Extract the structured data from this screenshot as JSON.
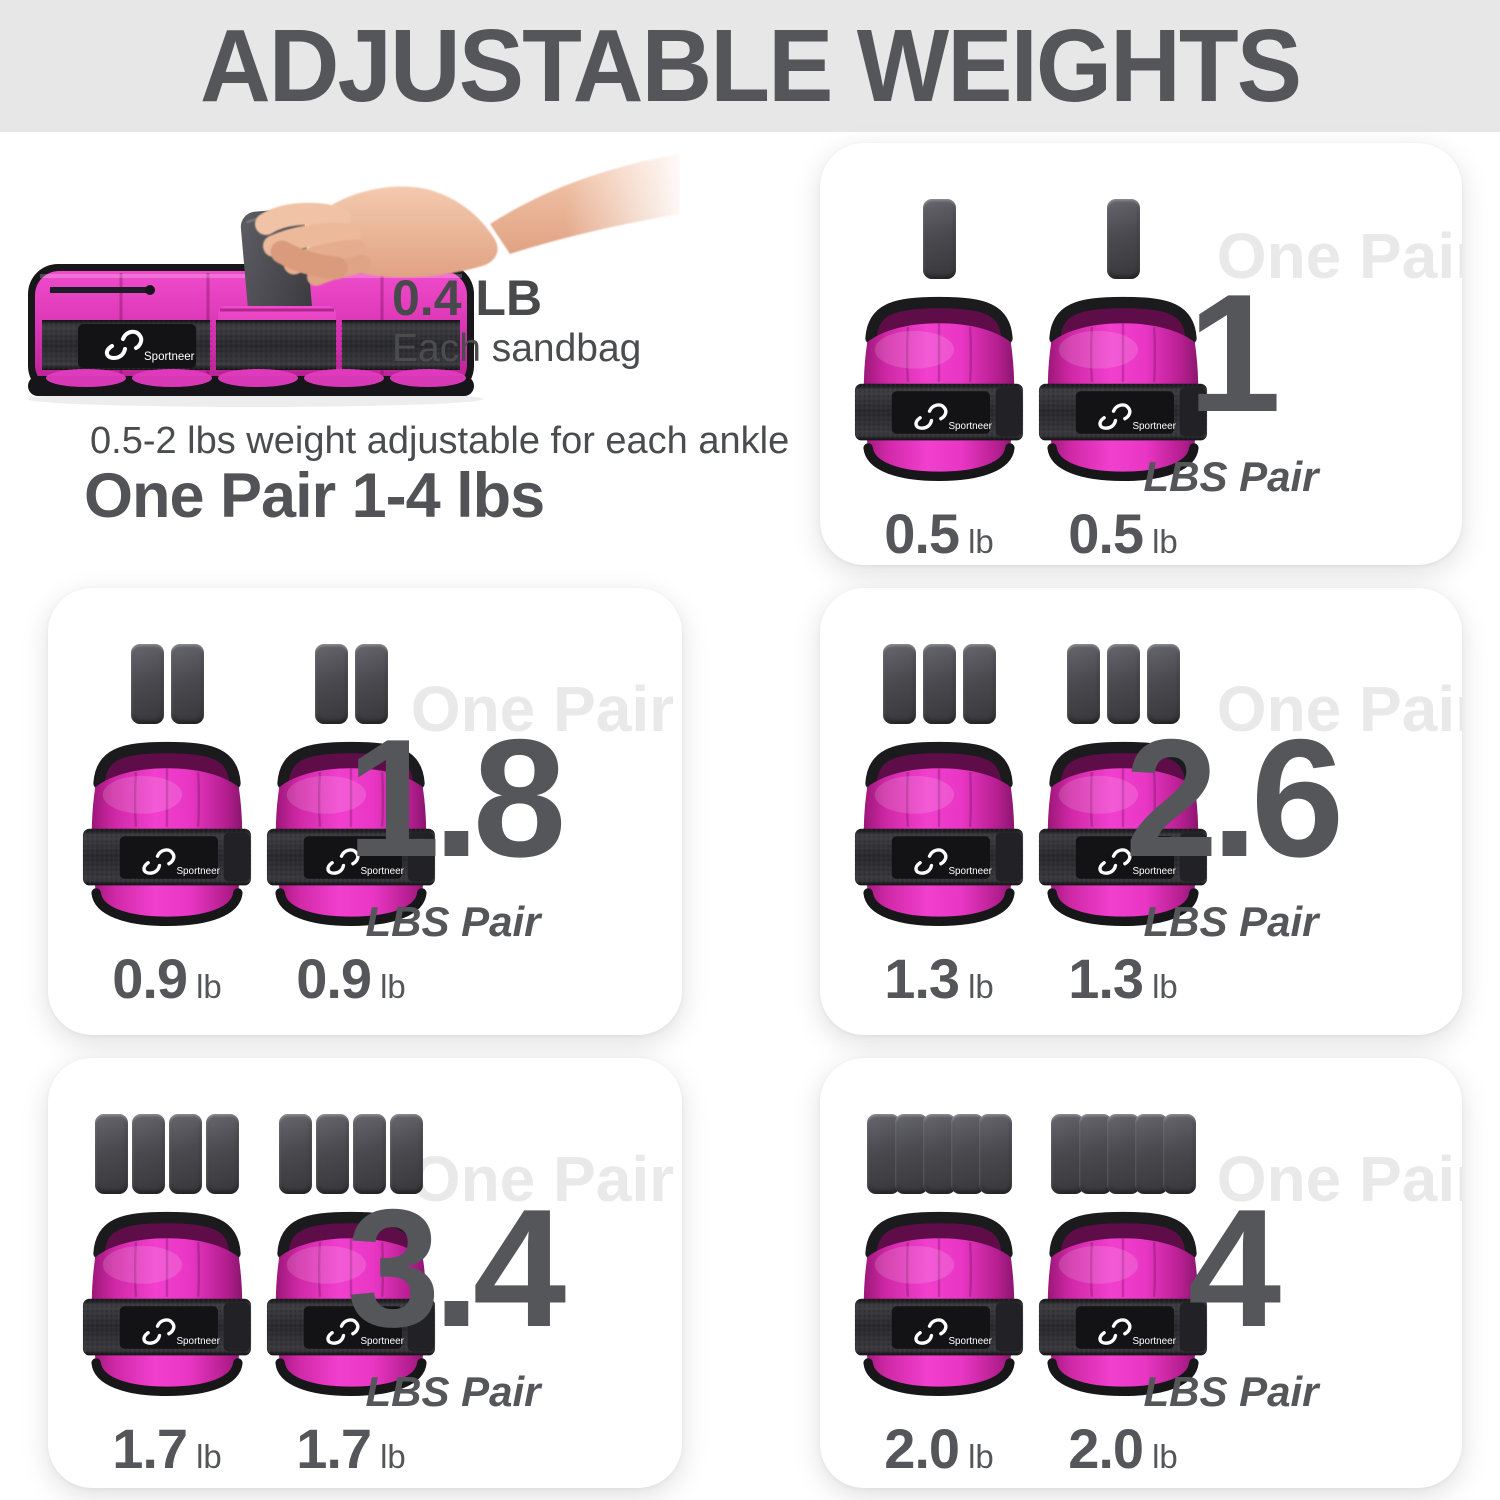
{
  "header": {
    "title": "ADJUSTABLE WEIGHTS"
  },
  "intro": {
    "sandbag_weight": "0.4 LB",
    "sandbag_caption": "Each sandbag",
    "adjust_note": "0.5-2 lbs weight adjustable for each ankle",
    "pair_range": "One Pair 1-4 lbs",
    "brand": "Sportneer"
  },
  "shared": {
    "watermark": "One Pair",
    "unit_small": "lb",
    "unit_pair": "LBS Pair"
  },
  "cards": [
    {
      "sandbags_per_side": 1,
      "left_weight": "0.5",
      "right_weight": "0.5",
      "pair_total": "1"
    },
    {
      "sandbags_per_side": 2,
      "left_weight": "0.9",
      "right_weight": "0.9",
      "pair_total": "1.8"
    },
    {
      "sandbags_per_side": 3,
      "left_weight": "1.3",
      "right_weight": "1.3",
      "pair_total": "2.6"
    },
    {
      "sandbags_per_side": 4,
      "left_weight": "1.7",
      "right_weight": "1.7",
      "pair_total": "3.4"
    },
    {
      "sandbags_per_side": 5,
      "left_weight": "2.0",
      "right_weight": "2.0",
      "pair_total": "4"
    }
  ],
  "colors": {
    "accent_pink": "#e83ccb",
    "text": "#58595b",
    "watermark": "#e9e9ea",
    "header_bg": "#e7e7e8",
    "sandbag_gray": "#4a4a4c"
  }
}
